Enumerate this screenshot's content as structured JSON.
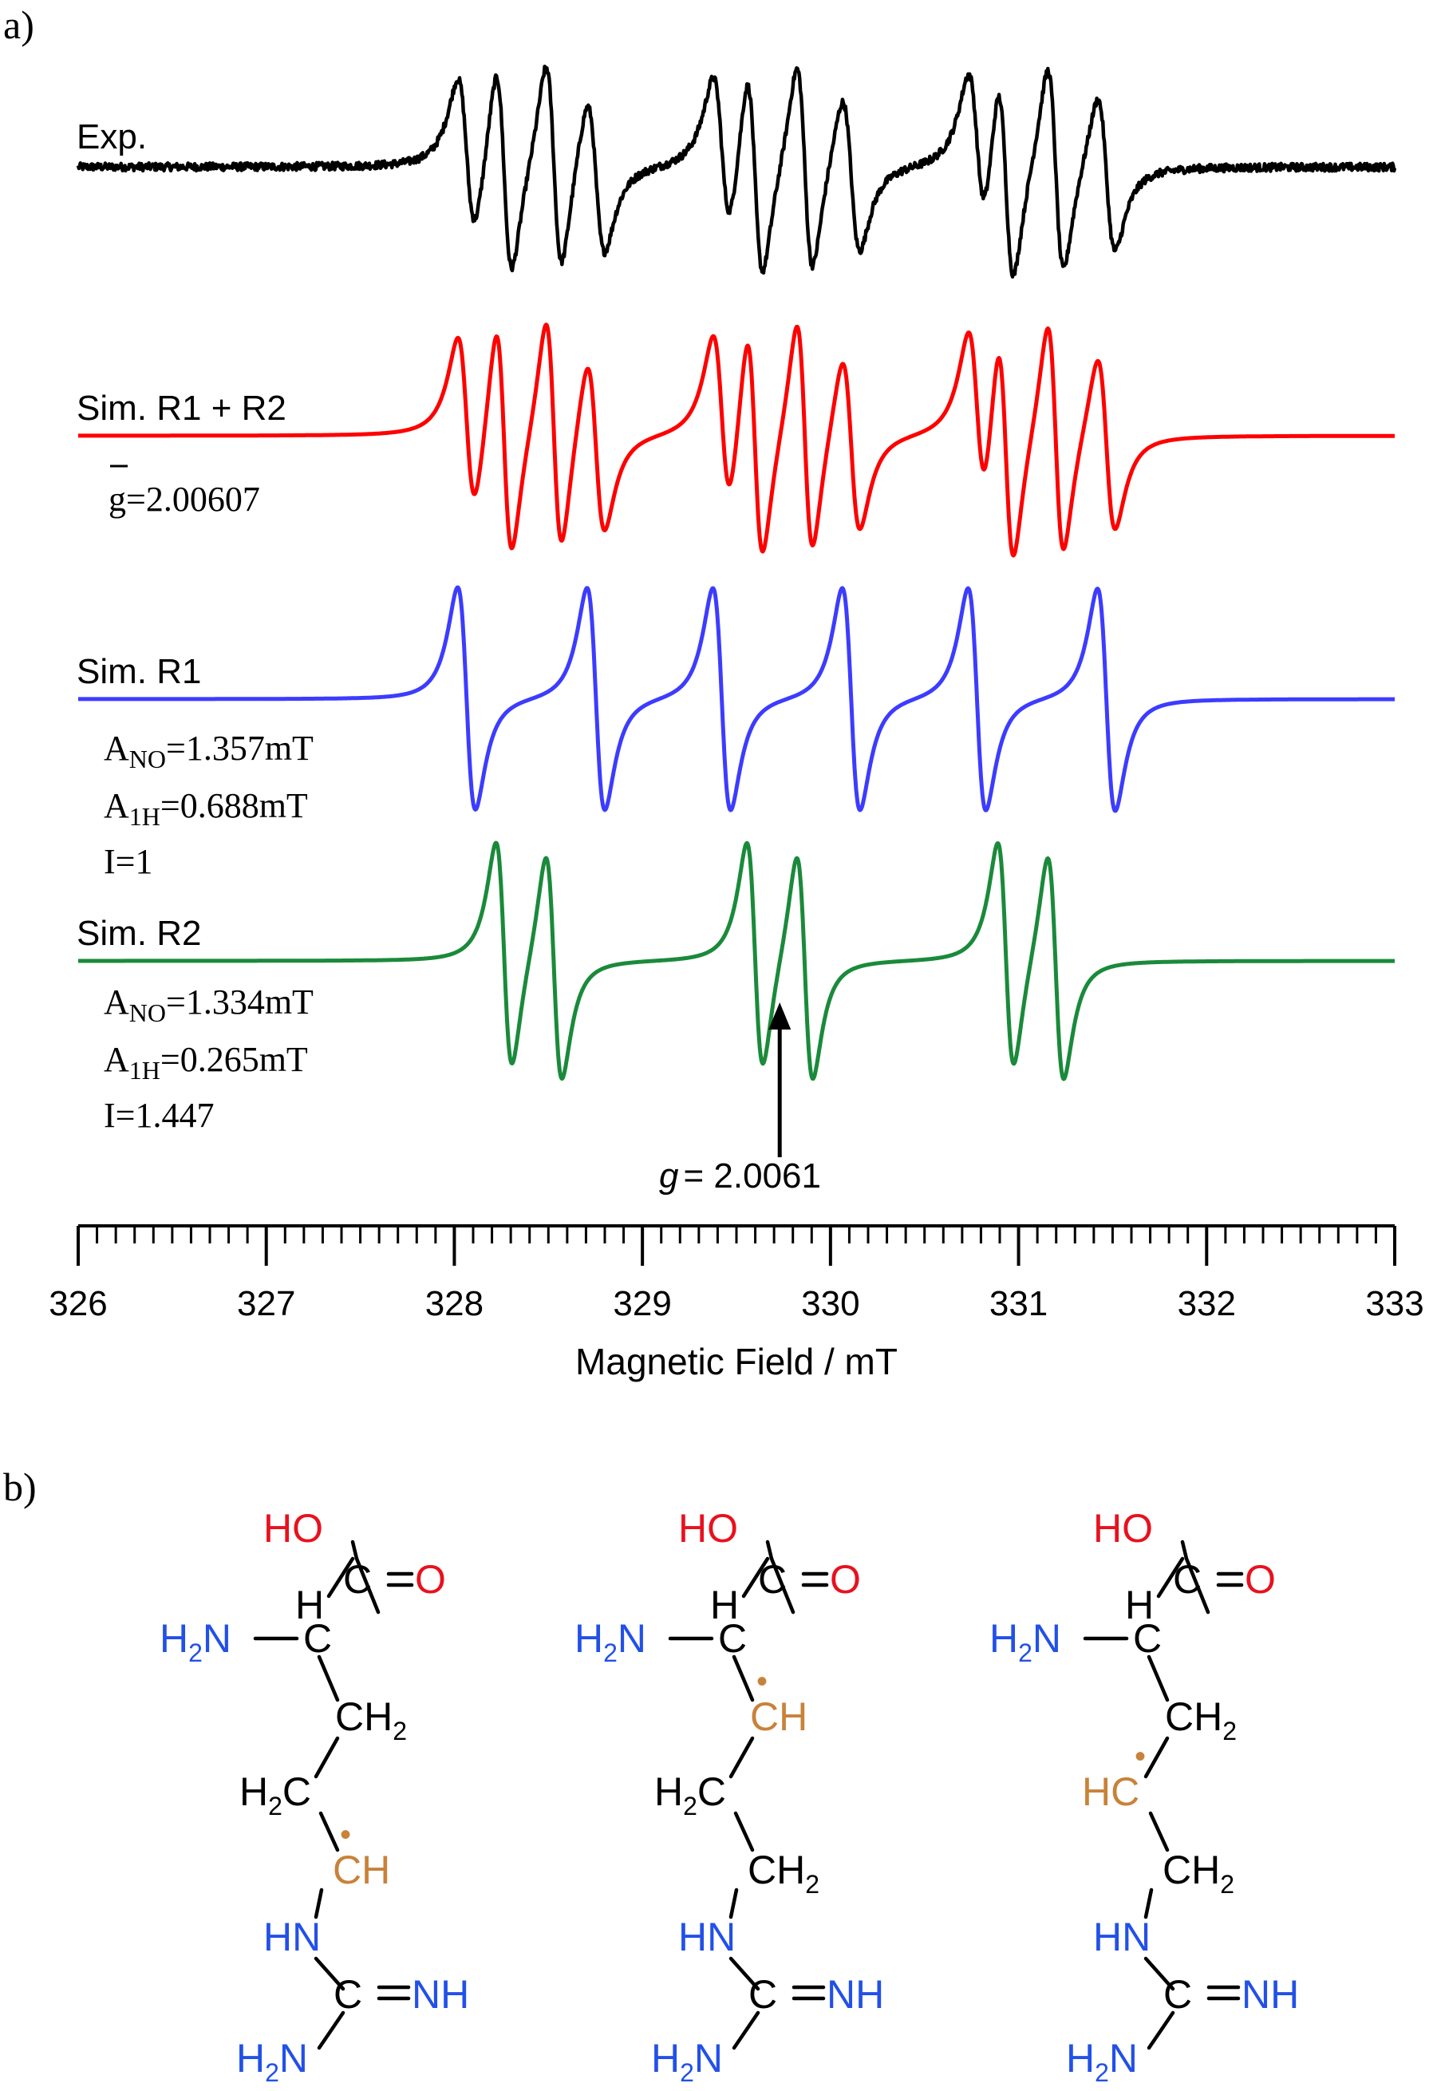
{
  "panels": {
    "a": "a)",
    "b": "b)"
  },
  "colors": {
    "exp": "#000000",
    "sim_sum": "#ff0000",
    "sim_r1": "#3c3cff",
    "sim_r2": "#1a8a3a",
    "oxygen": "#e8111e",
    "nitrogen": "#2250e8",
    "radical": "#c8823a",
    "carbon": "#000000"
  },
  "chart_data": {
    "type": "line",
    "title": "",
    "xlabel": "Magnetic Field / mT",
    "ylabel": "",
    "xlim": [
      326,
      333
    ],
    "ticks": [
      "326",
      "327",
      "328",
      "329",
      "330",
      "331",
      "332",
      "333"
    ],
    "series": [
      {
        "name": "Exp.",
        "color": "#000000"
      },
      {
        "name": "Sim. R1 + R2",
        "color": "#ff0000"
      },
      {
        "name": "Sim. R1",
        "color": "#3c3cff"
      },
      {
        "name": "Sim. R2",
        "color": "#1a8a3a"
      }
    ],
    "r1": {
      "a_no_mT": 1.357,
      "a_1h_mT": 0.688,
      "intensity": 1
    },
    "r2": {
      "a_no_mT": 1.334,
      "a_1h_mT": 0.265,
      "intensity": 1.447
    },
    "annotation": {
      "g_symbol": "g",
      "g_value": "= 2.0061",
      "field_mT": 329.73
    }
  },
  "labels": {
    "exp": "Exp.",
    "sum": "Sim. R1 + R2",
    "r1": "Sim. R1",
    "r2": "Sim. R2",
    "gbar_symbol": "g",
    "gbar_value": "=2.00607",
    "r1_params": {
      "a_no": "=1.357mT",
      "a_1h": "=0.688mT",
      "i": "I=1"
    },
    "r2_params": {
      "a_no": "=1.334mT",
      "a_1h": "=0.265mT",
      "i": "I=1.447"
    },
    "a": "A",
    "sub_no": "NO",
    "sub_1h": "1H"
  },
  "structures": {
    "hydroxyl": "HO",
    "carbonyl_o": "O",
    "alpha_h": "H",
    "amine": "H",
    "amine_sub": "2",
    "amine_n": "N",
    "carbon": "C",
    "ch": "CH",
    "ch2": "CH",
    "ch2_sub": "2",
    "h2c_h": "H",
    "h2c_sub": "2",
    "h2c_c": "C",
    "hc": "HC",
    "hn": "HN",
    "nh": "NH",
    "radical_dot": "•"
  }
}
